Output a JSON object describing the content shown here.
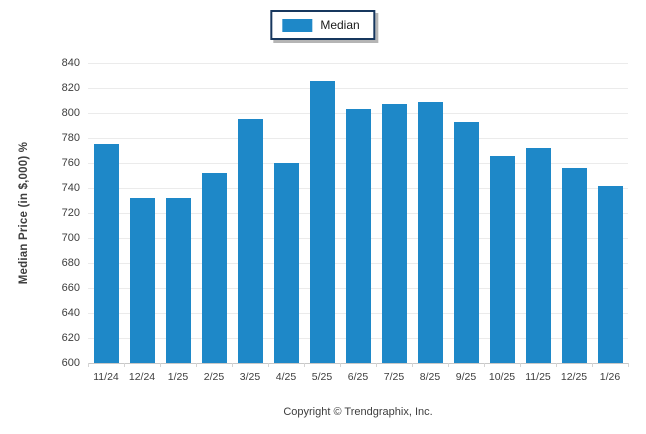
{
  "legend": {
    "label": "Median",
    "swatch_color": "#1E88C8"
  },
  "chart_data": {
    "type": "bar",
    "title": "",
    "series_name": "Median",
    "categories": [
      "11/24",
      "12/24",
      "1/25",
      "2/25",
      "3/25",
      "4/25",
      "5/25",
      "6/25",
      "7/25",
      "8/25",
      "9/25",
      "10/25",
      "11/25",
      "12/25",
      "1/26"
    ],
    "values": [
      775,
      732,
      732,
      752,
      795,
      760,
      826,
      803,
      807,
      809,
      793,
      766,
      772,
      756,
      742
    ],
    "xlabel": "",
    "ylabel": "Median Price (in $,000) %",
    "ylim": [
      600,
      840
    ],
    "ytick_step": 20,
    "bar_color": "#1E88C8",
    "grid": true,
    "legend_position": "top-center"
  },
  "footer": {
    "copyright": "Copyright © Trendgraphix, Inc."
  },
  "colors": {
    "bar": "#1E88C8",
    "gridline": "#EBEBEB",
    "axis_line": "#C8C8C8",
    "text": "#3D3D3D",
    "legend_border": "#17375E"
  }
}
